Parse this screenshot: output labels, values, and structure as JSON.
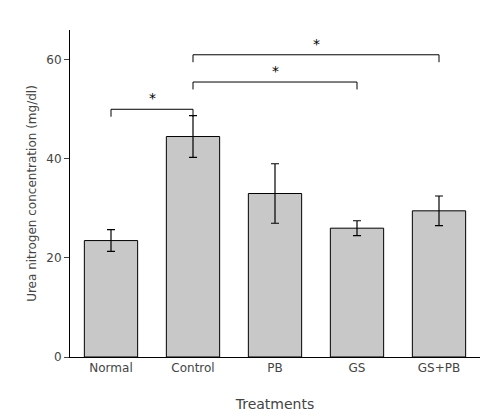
{
  "chart_data": {
    "type": "bar",
    "categories": [
      "Normal",
      "Control",
      "PB",
      "GS",
      "GS+PB"
    ],
    "values": [
      23.5,
      44.5,
      33.0,
      26.0,
      29.5
    ],
    "errors": [
      2.2,
      4.2,
      6.0,
      1.5,
      3.0
    ],
    "color": "#c8c8c8",
    "xlabel": "Treatments",
    "ylabel": "Urea nitrogen concentration (mg/dl)",
    "ylim": [
      0,
      66
    ],
    "yticks": [
      0,
      20,
      40,
      60
    ],
    "grid": false,
    "annotations": [
      {
        "from": "Normal",
        "to": "Control",
        "y": 50,
        "text": "*"
      },
      {
        "from": "Control",
        "to": "GS",
        "y": 55.5,
        "text": "*"
      },
      {
        "from": "Control",
        "to": "GS+PB",
        "y": 61.0,
        "text": "*"
      }
    ]
  }
}
